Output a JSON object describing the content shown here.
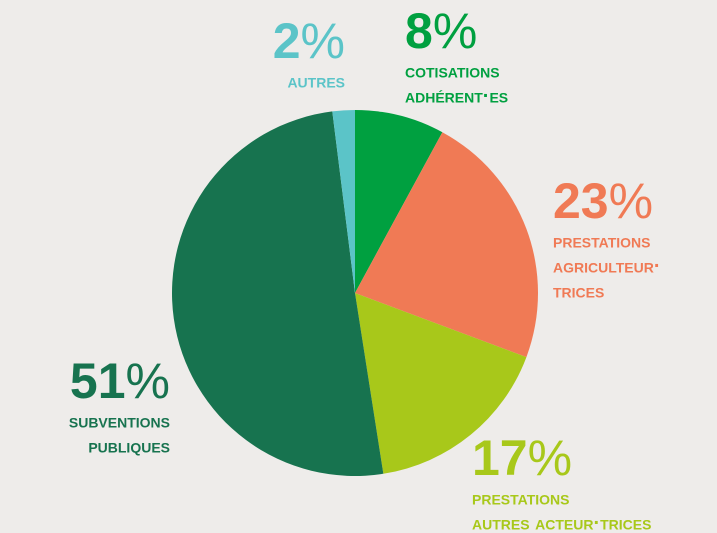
{
  "chart_data": {
    "type": "pie",
    "categories": [
      [
        "cotisations",
        "adhérent·es"
      ],
      [
        "prestations",
        "agriculteur·",
        "trices"
      ],
      [
        "prestations",
        "autres acteur·trices"
      ],
      [
        "subventions",
        "publiques"
      ],
      [
        "autres"
      ]
    ],
    "values": [
      8,
      23,
      17,
      51,
      2
    ],
    "value_labels": [
      "8%",
      "23%",
      "17%",
      "51%",
      "2%"
    ],
    "colors": [
      "#00a040",
      "#f07a55",
      "#a8c81a",
      "#17734f",
      "#5bc4c8"
    ]
  }
}
